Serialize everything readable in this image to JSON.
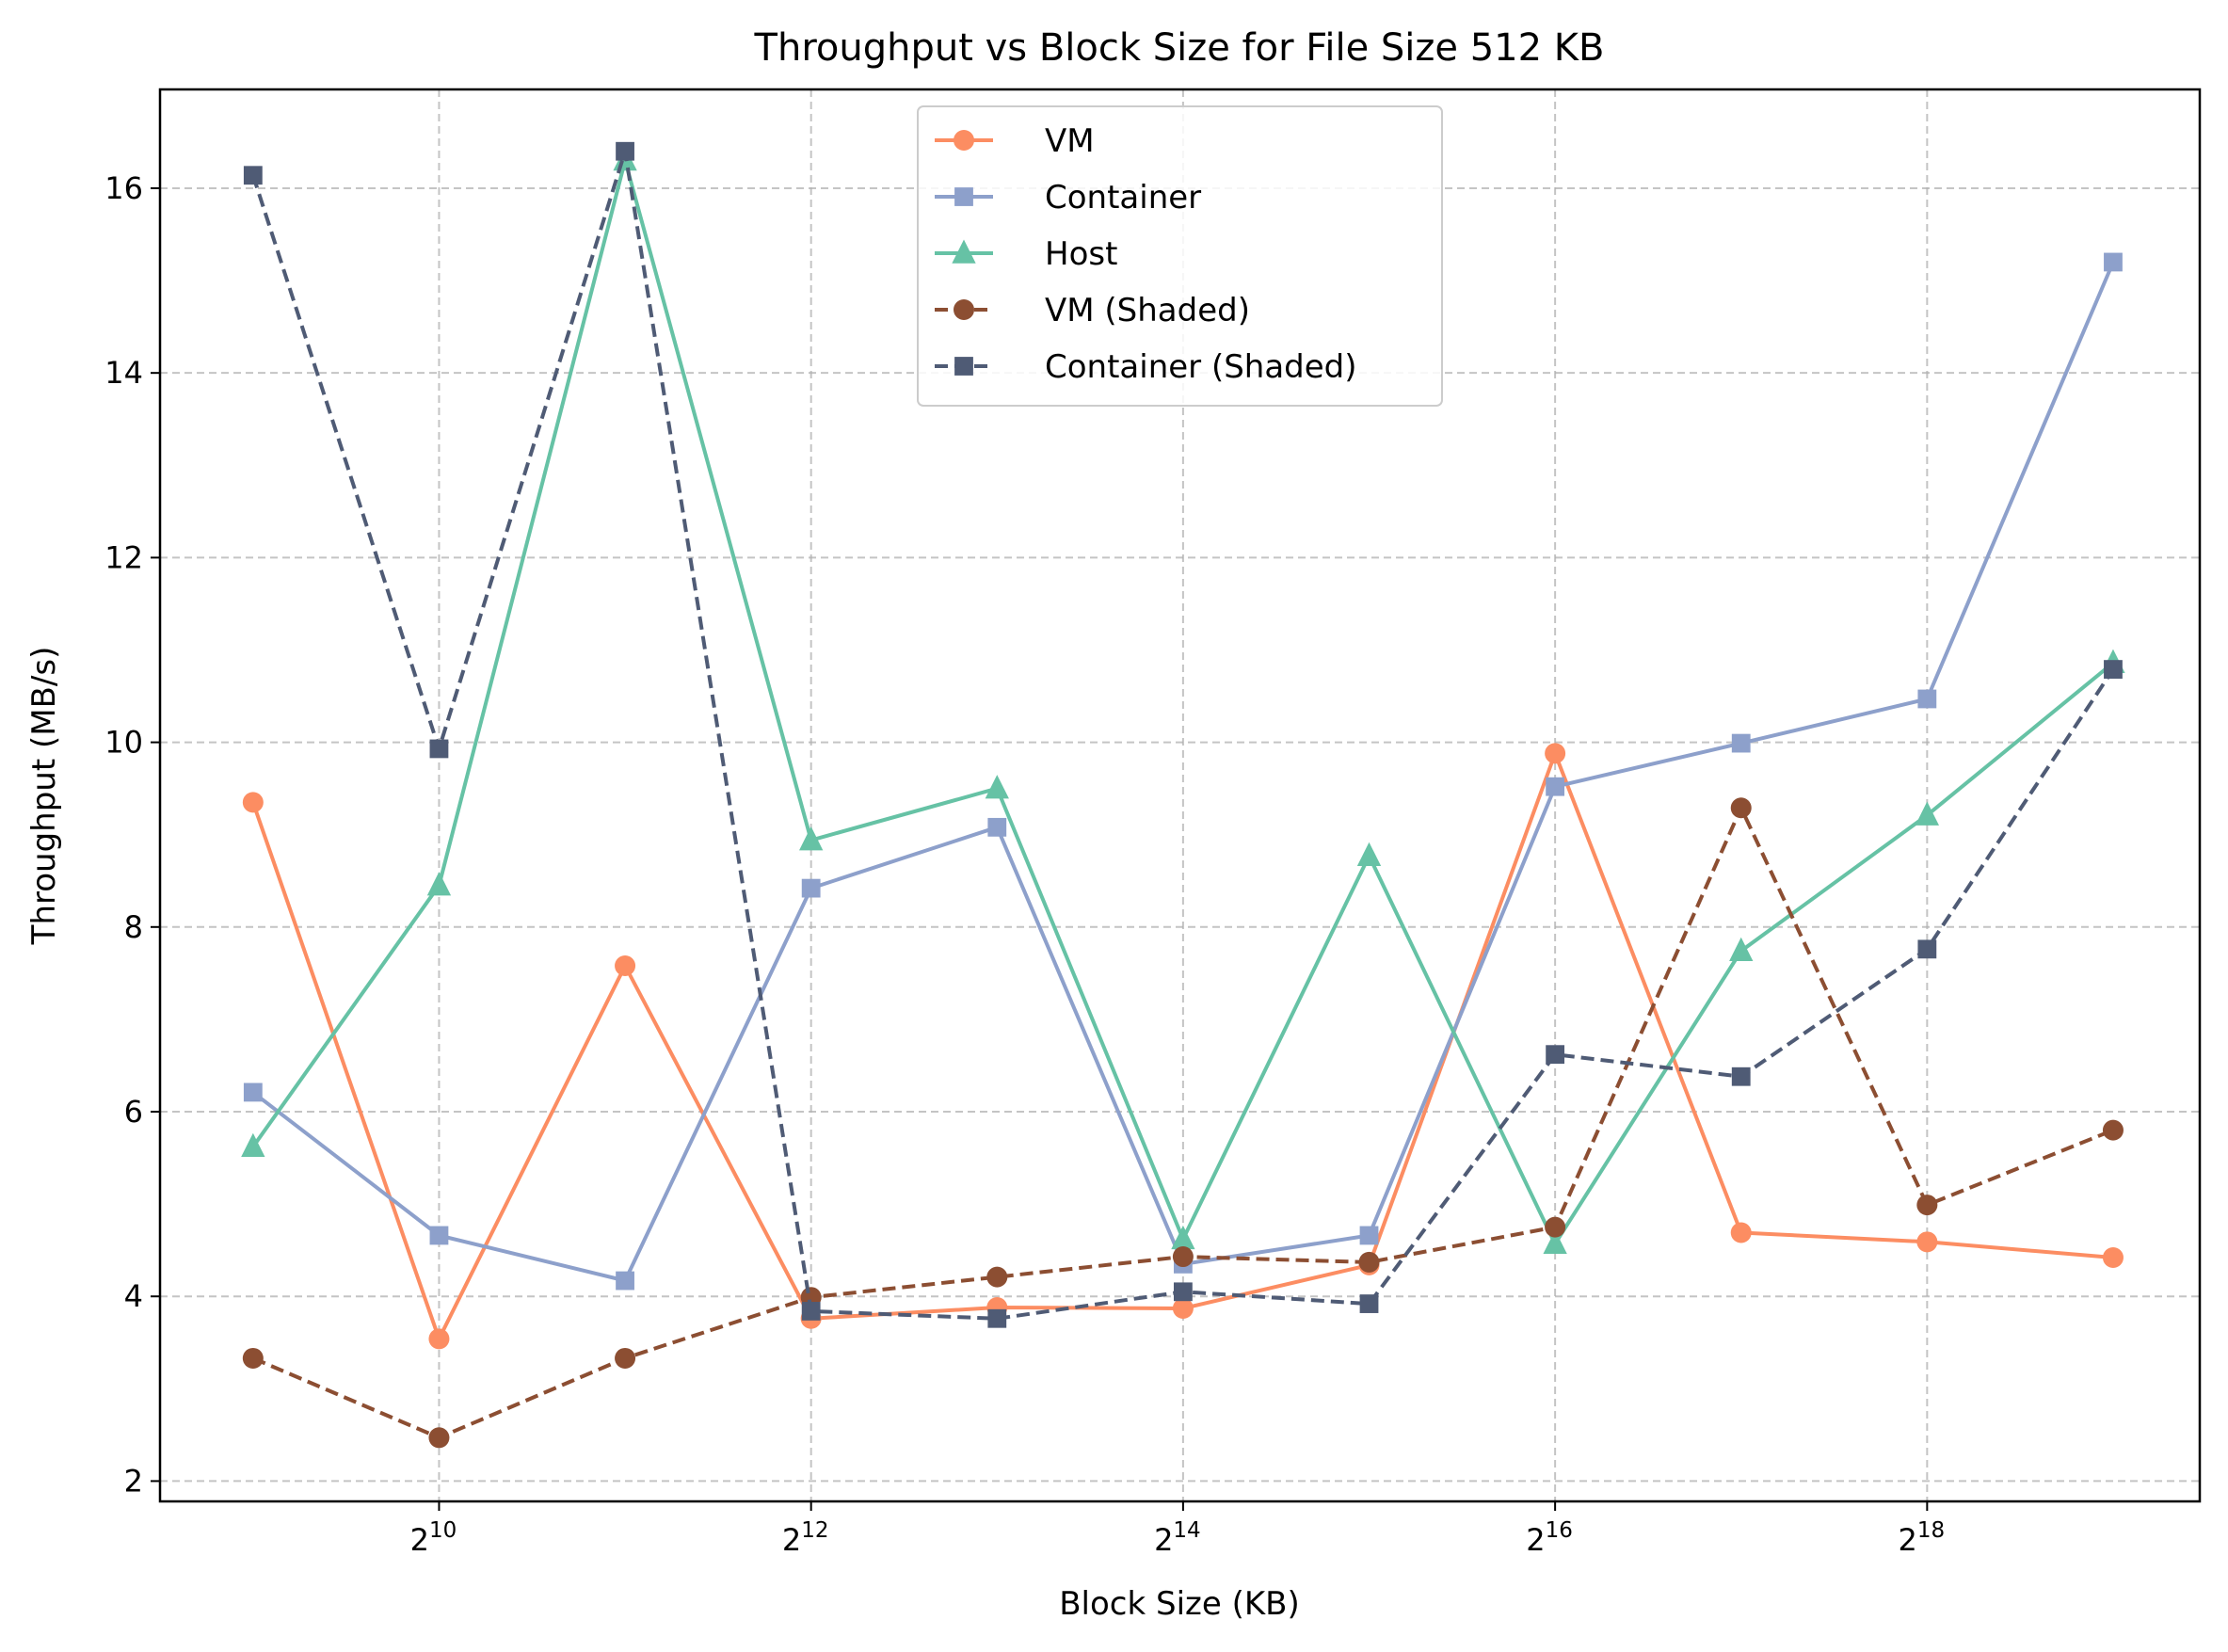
{
  "chart_data": {
    "type": "line",
    "title": "Throughput vs Block Size for File Size 512 KB",
    "xlabel": "Block Size (KB)",
    "ylabel": "Throughput (MB/s)",
    "x_scale": "log2",
    "x": [
      512,
      1024,
      2048,
      4096,
      8192,
      16384,
      32768,
      65536,
      131072,
      262144,
      524288
    ],
    "x_ticks": [
      {
        "value": 1024,
        "base": "2",
        "exp": "10"
      },
      {
        "value": 4096,
        "base": "2",
        "exp": "12"
      },
      {
        "value": 16384,
        "base": "2",
        "exp": "14"
      },
      {
        "value": 65536,
        "base": "2",
        "exp": "16"
      },
      {
        "value": 262144,
        "base": "2",
        "exp": "18"
      }
    ],
    "xlim": [
      362,
      724077
    ],
    "ylim": [
      1.78,
      17.07
    ],
    "y_ticks": [
      2,
      4,
      6,
      8,
      10,
      12,
      14,
      16
    ],
    "grid": true,
    "legend_position": "top-center",
    "series": [
      {
        "name": "VM",
        "color": "#fc8d62",
        "marker": "circle",
        "dash": "solid",
        "values": [
          9.35,
          3.54,
          7.58,
          3.76,
          3.88,
          3.87,
          4.34,
          9.88,
          4.69,
          4.59,
          4.42
        ]
      },
      {
        "name": "Container",
        "color": "#8da0cb",
        "marker": "square",
        "dash": "solid",
        "values": [
          6.21,
          4.66,
          4.17,
          8.42,
          9.08,
          4.35,
          4.66,
          9.52,
          9.99,
          10.47,
          15.2
        ]
      },
      {
        "name": "Host",
        "color": "#66c2a5",
        "marker": "triangle",
        "dash": "solid",
        "values": [
          5.62,
          8.45,
          16.3,
          8.94,
          9.5,
          4.62,
          8.77,
          4.57,
          7.74,
          9.21,
          10.86
        ]
      },
      {
        "name": "VM (Shaded)",
        "color": "#8c4e32",
        "marker": "circle",
        "dash": "dashed",
        "values": [
          3.33,
          2.47,
          3.33,
          3.99,
          4.21,
          4.43,
          4.37,
          4.75,
          9.29,
          4.99,
          5.8
        ]
      },
      {
        "name": "Container (Shaded)",
        "color": "#4f5b75",
        "marker": "square",
        "dash": "dashed",
        "values": [
          16.14,
          9.93,
          16.4,
          3.84,
          3.76,
          4.05,
          3.92,
          6.62,
          6.38,
          7.76,
          10.79
        ]
      }
    ]
  }
}
